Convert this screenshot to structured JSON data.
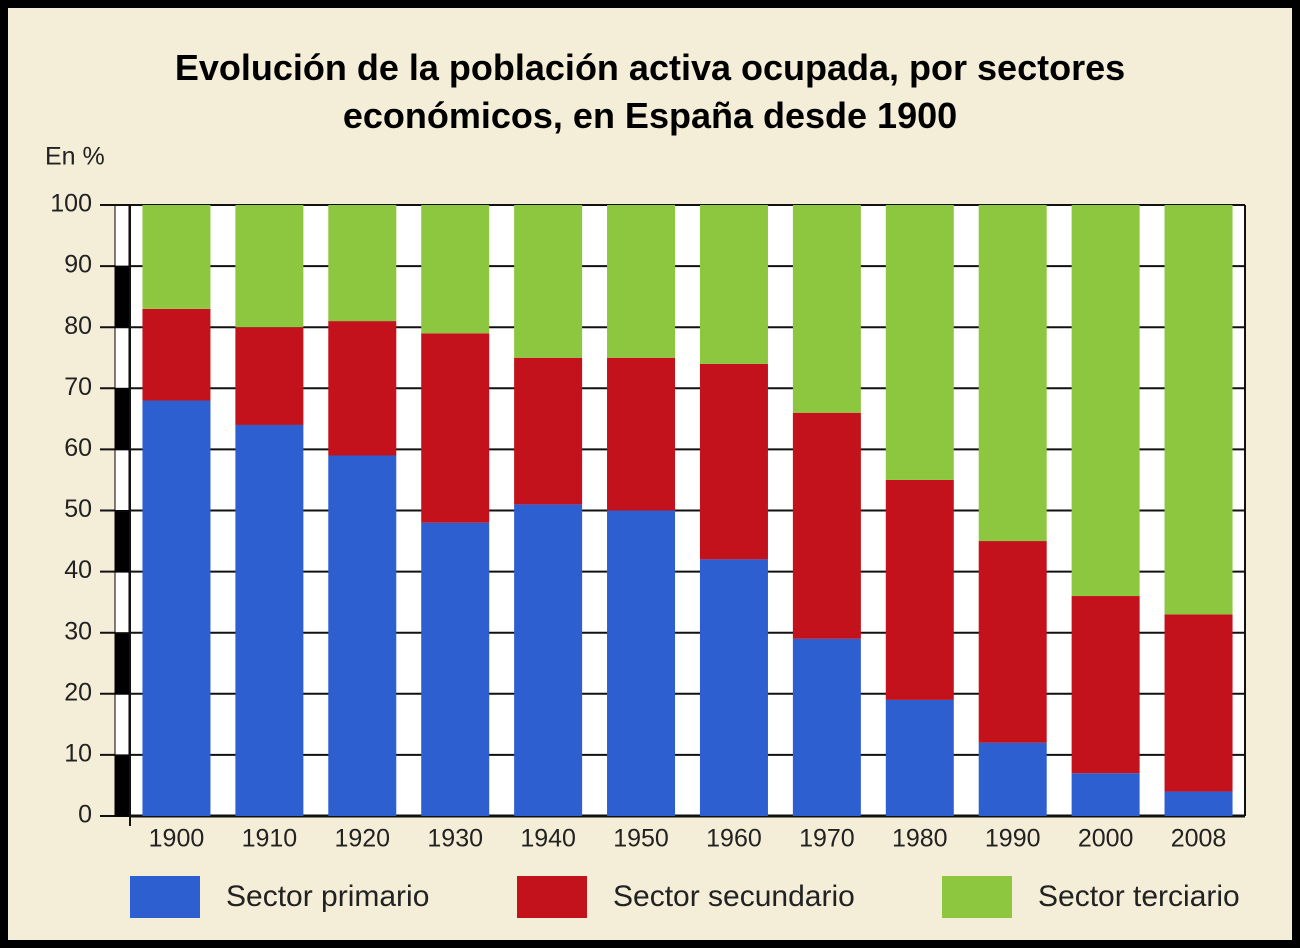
{
  "chart_data": {
    "type": "stacked_bar",
    "title": "Evolución de la población activa ocupada, por sectores económicos, en España desde 1900",
    "y_label": "En %",
    "categories": [
      "1900",
      "1910",
      "1920",
      "1930",
      "1940",
      "1950",
      "1960",
      "1970",
      "1980",
      "1990",
      "2000",
      "2008"
    ],
    "series": [
      {
        "name": "Sector primario",
        "color": "#2e5fd1",
        "values": [
          68,
          64,
          59,
          48,
          51,
          50,
          42,
          29,
          19,
          12,
          7,
          4
        ]
      },
      {
        "name": "Sector secundario",
        "color": "#c3121c",
        "values": [
          15,
          16,
          22,
          31,
          24,
          25,
          32,
          37,
          36,
          33,
          29,
          29
        ]
      },
      {
        "name": "Sector terciario",
        "color": "#8dc63f",
        "values": [
          17,
          20,
          19,
          21,
          25,
          25,
          26,
          34,
          45,
          55,
          64,
          67
        ]
      }
    ],
    "ylim": [
      0,
      100
    ],
    "yticks": [
      0,
      10,
      20,
      30,
      40,
      50,
      60,
      70,
      80,
      90,
      100
    ],
    "grid": true
  }
}
